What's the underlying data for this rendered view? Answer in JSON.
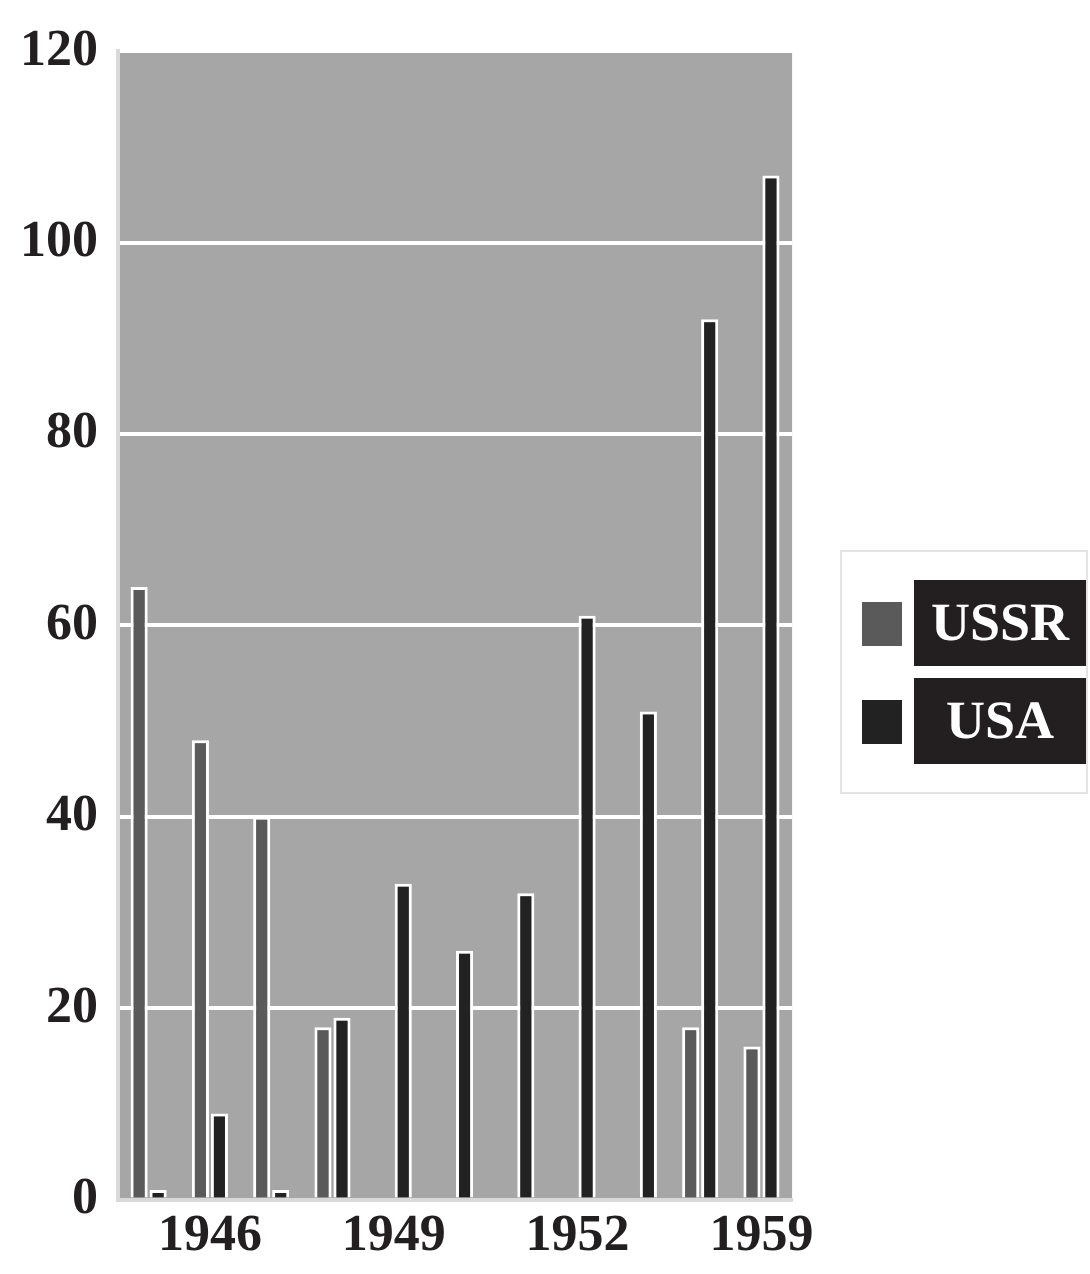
{
  "chart_data": {
    "type": "bar",
    "categories": [
      null,
      "1946",
      null,
      null,
      "1949",
      null,
      null,
      "1952",
      null,
      null,
      "1959"
    ],
    "series": [
      {
        "name": "USSR",
        "color": "#5a5a5a",
        "values": [
          64,
          48,
          40,
          18,
          0,
          0,
          0,
          0,
          0,
          18,
          16
        ]
      },
      {
        "name": "USA",
        "color": "#222222",
        "values": [
          1,
          9,
          1,
          19,
          33,
          26,
          32,
          61,
          51,
          92,
          107
        ]
      }
    ],
    "ylim": [
      0,
      120
    ],
    "yticks": [
      0,
      20,
      40,
      60,
      80,
      100,
      120
    ],
    "grid": "y",
    "legend": "right"
  }
}
